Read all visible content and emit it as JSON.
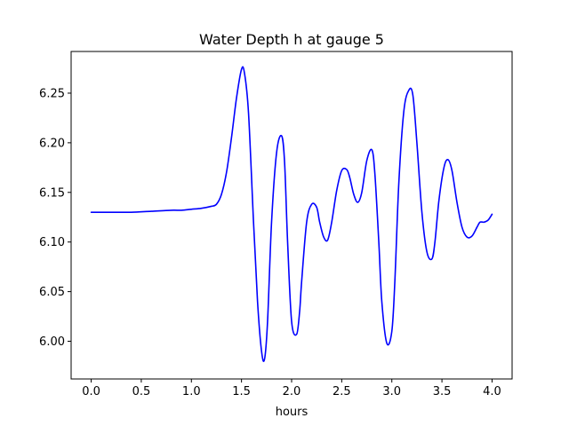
{
  "chart_data": {
    "type": "line",
    "title": "Water Depth h at gauge 5",
    "xlabel": "hours",
    "ylabel": "",
    "xlim": [
      -0.2,
      4.2
    ],
    "ylim": [
      5.962,
      6.292
    ],
    "xticks": [
      0.0,
      0.5,
      1.0,
      1.5,
      2.0,
      2.5,
      3.0,
      3.5,
      4.0
    ],
    "xtick_labels": [
      "0.0",
      "0.5",
      "1.0",
      "1.5",
      "2.0",
      "2.5",
      "3.0",
      "3.5",
      "4.0"
    ],
    "yticks": [
      6.0,
      6.05,
      6.1,
      6.15,
      6.2,
      6.25
    ],
    "ytick_labels": [
      "6.00",
      "6.05",
      "6.10",
      "6.15",
      "6.20",
      "6.25"
    ],
    "grid": false,
    "series": [
      {
        "color": "#0000ff",
        "x": [
          0.0,
          0.2,
          0.4,
          0.6,
          0.8,
          0.9,
          1.0,
          1.1,
          1.2,
          1.25,
          1.3,
          1.35,
          1.4,
          1.45,
          1.5,
          1.53,
          1.57,
          1.62,
          1.66,
          1.7,
          1.73,
          1.76,
          1.8,
          1.85,
          1.9,
          1.93,
          1.96,
          2.0,
          2.05,
          2.08,
          2.1,
          2.15,
          2.2,
          2.25,
          2.28,
          2.32,
          2.36,
          2.4,
          2.45,
          2.5,
          2.55,
          2.58,
          2.62,
          2.66,
          2.7,
          2.75,
          2.8,
          2.83,
          2.87,
          2.9,
          2.95,
          3.0,
          3.03,
          3.07,
          3.12,
          3.17,
          3.21,
          3.25,
          3.3,
          3.35,
          3.4,
          3.43,
          3.47,
          3.52,
          3.56,
          3.6,
          3.65,
          3.7,
          3.75,
          3.8,
          3.85,
          3.88,
          3.92,
          3.96,
          4.0
        ],
        "y": [
          6.13,
          6.13,
          6.13,
          6.131,
          6.132,
          6.132,
          6.133,
          6.134,
          6.136,
          6.138,
          6.148,
          6.17,
          6.205,
          6.245,
          6.274,
          6.27,
          6.23,
          6.12,
          6.04,
          5.99,
          5.982,
          6.02,
          6.12,
          6.19,
          6.207,
          6.18,
          6.1,
          6.02,
          6.007,
          6.03,
          6.06,
          6.12,
          6.138,
          6.135,
          6.12,
          6.105,
          6.102,
          6.12,
          6.152,
          6.172,
          6.173,
          6.165,
          6.148,
          6.14,
          6.15,
          6.182,
          6.193,
          6.17,
          6.1,
          6.04,
          5.998,
          6.01,
          6.06,
          6.16,
          6.232,
          6.253,
          6.248,
          6.2,
          6.13,
          6.09,
          6.083,
          6.1,
          6.142,
          6.175,
          6.183,
          6.172,
          6.14,
          6.115,
          6.105,
          6.106,
          6.115,
          6.12,
          6.12,
          6.122,
          6.128
        ]
      }
    ]
  }
}
